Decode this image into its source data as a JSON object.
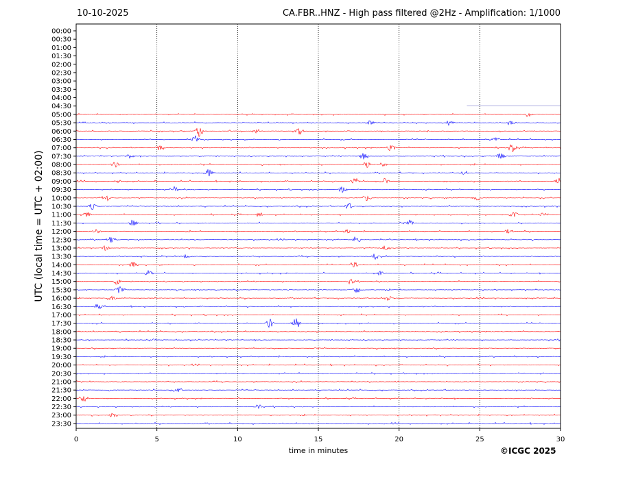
{
  "header": {
    "date": "10-10-2025",
    "title": "CA.FBR..HNZ - High pass filtered @2Hz - Amplification: 1/1000"
  },
  "footer": {
    "copyright": "©ICGC 2025"
  },
  "colors": {
    "red_trace": "#ff0000",
    "blue_trace": "#0000ff",
    "background": "#ffffff",
    "axis": "#000000",
    "gridline": "#000000",
    "partial_trace": "#7777cc"
  },
  "chart_data": {
    "type": "line",
    "title": "CA.FBR..HNZ - High pass filtered @2Hz - Amplification: 1/1000",
    "xlabel": "time in minutes",
    "ylabel": "UTC (local time = UTC + 02:00)",
    "xlim": [
      0,
      30
    ],
    "x_ticks": [
      0,
      5,
      10,
      15,
      20,
      25,
      30
    ],
    "vertical_grid": "dotted at 5, 10, 15, 20, 25 minutes",
    "row_labels": [
      "00:00",
      "00:30",
      "01:00",
      "01:30",
      "02:00",
      "02:30",
      "03:00",
      "03:30",
      "04:00",
      "04:30",
      "05:00",
      "05:30",
      "06:00",
      "06:30",
      "07:00",
      "07:30",
      "08:00",
      "08:30",
      "09:00",
      "09:30",
      "10:00",
      "10:30",
      "11:00",
      "11:30",
      "12:00",
      "12:30",
      "13:00",
      "13:30",
      "14:00",
      "14:30",
      "15:00",
      "15:30",
      "16:00",
      "16:30",
      "17:00",
      "17:30",
      "18:00",
      "18:30",
      "19:00",
      "19:30",
      "20:00",
      "20:30",
      "21:00",
      "21:30",
      "22:00",
      "22:30",
      "23:00",
      "23:30"
    ],
    "series": [
      {
        "row": "04:30",
        "color": "partial",
        "start_minute": 24.2,
        "end_minute": 30,
        "events": []
      },
      {
        "row": "05:00",
        "color": "red",
        "events": [
          {
            "minute": 28.0,
            "amp": 0.2
          }
        ]
      },
      {
        "row": "05:30",
        "color": "blue",
        "events": [
          {
            "minute": 18.2,
            "amp": 0.3
          },
          {
            "minute": 23.1,
            "amp": 0.4
          },
          {
            "minute": 27.0,
            "amp": 0.3
          }
        ]
      },
      {
        "row": "06:00",
        "color": "red",
        "events": [
          {
            "minute": 7.6,
            "amp": 0.8
          },
          {
            "minute": 11.2,
            "amp": 0.3
          },
          {
            "minute": 13.8,
            "amp": 0.5
          }
        ]
      },
      {
        "row": "06:30",
        "color": "blue",
        "events": [
          {
            "minute": 7.4,
            "amp": 0.4
          },
          {
            "minute": 26.0,
            "amp": 0.3
          }
        ]
      },
      {
        "row": "07:00",
        "color": "red",
        "events": [
          {
            "minute": 5.2,
            "amp": 0.4
          },
          {
            "minute": 19.5,
            "amp": 0.4
          },
          {
            "minute": 27.0,
            "amp": 0.5
          }
        ]
      },
      {
        "row": "07:30",
        "color": "blue",
        "events": [
          {
            "minute": 3.3,
            "amp": 0.3
          },
          {
            "minute": 17.8,
            "amp": 0.4
          },
          {
            "minute": 26.3,
            "amp": 0.4
          }
        ]
      },
      {
        "row": "08:00",
        "color": "red",
        "events": [
          {
            "minute": 2.4,
            "amp": 0.4
          },
          {
            "minute": 18.0,
            "amp": 0.4
          },
          {
            "minute": 19.0,
            "amp": 0.3
          }
        ]
      },
      {
        "row": "08:30",
        "color": "blue",
        "events": [
          {
            "minute": 8.2,
            "amp": 0.5
          },
          {
            "minute": 24.0,
            "amp": 0.2
          }
        ]
      },
      {
        "row": "09:00",
        "color": "red",
        "events": [
          {
            "minute": 2.6,
            "amp": 0.3
          },
          {
            "minute": 17.3,
            "amp": 0.4
          },
          {
            "minute": 19.1,
            "amp": 0.5
          },
          {
            "minute": 29.9,
            "amp": 0.4
          }
        ]
      },
      {
        "row": "09:30",
        "color": "blue",
        "events": [
          {
            "minute": 6.1,
            "amp": 0.4
          },
          {
            "minute": 16.5,
            "amp": 0.4
          }
        ]
      },
      {
        "row": "10:00",
        "color": "red",
        "events": [
          {
            "minute": 1.9,
            "amp": 0.3
          },
          {
            "minute": 18.0,
            "amp": 0.4
          },
          {
            "minute": 24.8,
            "amp": 0.3
          }
        ]
      },
      {
        "row": "10:30",
        "color": "blue",
        "events": [
          {
            "minute": 1.0,
            "amp": 0.4
          },
          {
            "minute": 16.9,
            "amp": 0.5
          }
        ]
      },
      {
        "row": "11:00",
        "color": "red",
        "events": [
          {
            "minute": 0.7,
            "amp": 0.4
          },
          {
            "minute": 11.3,
            "amp": 0.3
          },
          {
            "minute": 27.1,
            "amp": 0.4
          },
          {
            "minute": 29.0,
            "amp": 0.3
          }
        ]
      },
      {
        "row": "11:30",
        "color": "blue",
        "events": [
          {
            "minute": 3.5,
            "amp": 0.4
          },
          {
            "minute": 20.7,
            "amp": 0.3
          }
        ]
      },
      {
        "row": "12:00",
        "color": "red",
        "events": [
          {
            "minute": 1.3,
            "amp": 0.3
          },
          {
            "minute": 16.8,
            "amp": 0.3
          },
          {
            "minute": 26.8,
            "amp": 0.3
          }
        ]
      },
      {
        "row": "12:30",
        "color": "blue",
        "events": [
          {
            "minute": 2.1,
            "amp": 0.4
          },
          {
            "minute": 17.4,
            "amp": 0.4
          }
        ]
      },
      {
        "row": "13:00",
        "color": "red",
        "events": [
          {
            "minute": 1.8,
            "amp": 0.3
          },
          {
            "minute": 19.2,
            "amp": 0.3
          }
        ]
      },
      {
        "row": "13:30",
        "color": "blue",
        "events": [
          {
            "minute": 6.8,
            "amp": 0.3
          },
          {
            "minute": 18.5,
            "amp": 0.4
          }
        ]
      },
      {
        "row": "14:00",
        "color": "red",
        "events": [
          {
            "minute": 3.5,
            "amp": 0.4
          },
          {
            "minute": 17.2,
            "amp": 0.4
          }
        ]
      },
      {
        "row": "14:30",
        "color": "blue",
        "events": [
          {
            "minute": 4.5,
            "amp": 0.4
          },
          {
            "minute": 18.9,
            "amp": 0.4
          }
        ]
      },
      {
        "row": "15:00",
        "color": "red",
        "events": [
          {
            "minute": 2.5,
            "amp": 0.4
          },
          {
            "minute": 17.0,
            "amp": 0.3
          }
        ]
      },
      {
        "row": "15:30",
        "color": "blue",
        "events": [
          {
            "minute": 2.7,
            "amp": 0.4
          },
          {
            "minute": 17.4,
            "amp": 0.4
          }
        ]
      },
      {
        "row": "16:00",
        "color": "red",
        "events": [
          {
            "minute": 2.2,
            "amp": 0.3
          },
          {
            "minute": 19.3,
            "amp": 0.4
          }
        ]
      },
      {
        "row": "16:30",
        "color": "blue",
        "events": [
          {
            "minute": 1.4,
            "amp": 0.3
          }
        ]
      },
      {
        "row": "17:00",
        "color": "red",
        "events": []
      },
      {
        "row": "17:30",
        "color": "blue",
        "events": [
          {
            "minute": 12.0,
            "amp": 0.6
          },
          {
            "minute": 13.6,
            "amp": 0.9
          }
        ]
      },
      {
        "row": "18:00",
        "color": "red",
        "events": []
      },
      {
        "row": "18:30",
        "color": "blue",
        "events": []
      },
      {
        "row": "19:00",
        "color": "red",
        "events": []
      },
      {
        "row": "19:30",
        "color": "blue",
        "events": []
      },
      {
        "row": "20:00",
        "color": "red",
        "events": []
      },
      {
        "row": "20:30",
        "color": "blue",
        "events": []
      },
      {
        "row": "21:00",
        "color": "red",
        "events": []
      },
      {
        "row": "21:30",
        "color": "blue",
        "events": [
          {
            "minute": 6.3,
            "amp": 0.3
          }
        ]
      },
      {
        "row": "22:00",
        "color": "red",
        "events": [
          {
            "minute": 0.5,
            "amp": 0.4
          }
        ]
      },
      {
        "row": "22:30",
        "color": "blue",
        "events": [
          {
            "minute": 11.3,
            "amp": 0.3
          }
        ]
      },
      {
        "row": "23:00",
        "color": "red",
        "events": [
          {
            "minute": 2.3,
            "amp": 0.3
          }
        ]
      },
      {
        "row": "23:30",
        "color": "blue",
        "events": []
      }
    ]
  }
}
